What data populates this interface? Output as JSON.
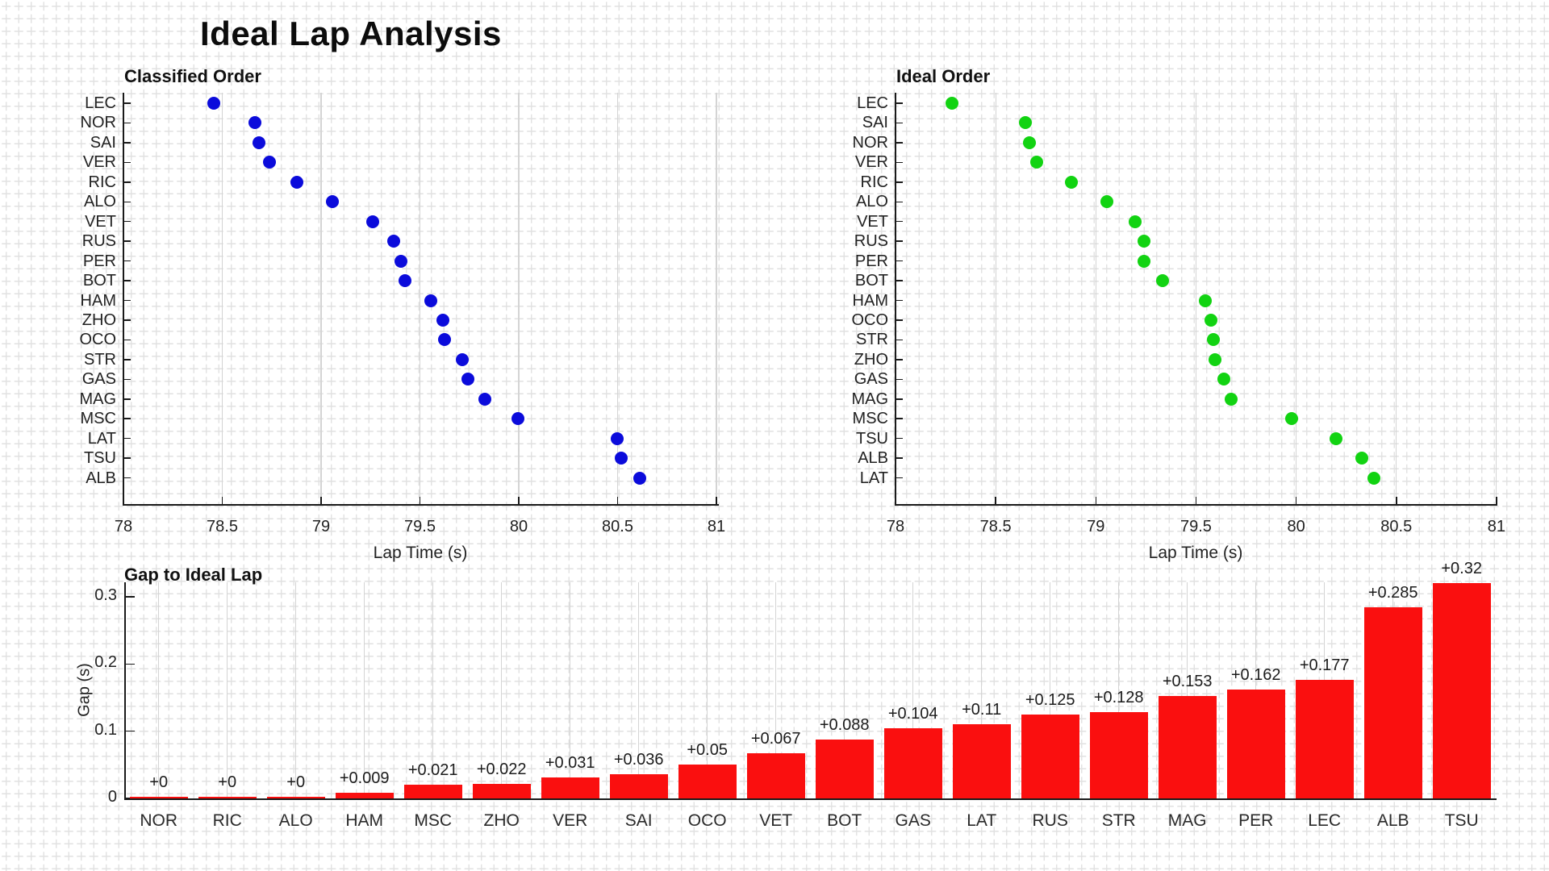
{
  "page": {
    "title": "Ideal Lap Analysis"
  },
  "colors": {
    "classified_marker": "#0b0bdb",
    "ideal_marker": "#12d312",
    "gap_bar": "#fa0f0f",
    "grid": "#d4d4d4",
    "spine": "#1a1a1a"
  },
  "chart_data": [
    {
      "type": "scatter",
      "title": "Classified Order",
      "xlabel": "Lap Time (s)",
      "xlim": [
        78,
        81
      ],
      "x_ticks": [
        "78",
        "78.5",
        "79",
        "79.5",
        "80",
        "80.5",
        "81"
      ],
      "grid": "vertical",
      "marker_color": "#0b0bdb",
      "categories": [
        "LEC",
        "NOR",
        "SAI",
        "VER",
        "RIC",
        "ALO",
        "VET",
        "RUS",
        "PER",
        "BOT",
        "HAM",
        "ZHO",
        "OCO",
        "STR",
        "GAS",
        "MAG",
        "MSC",
        "LAT",
        "TSU",
        "ALB"
      ],
      "values": [
        78.458,
        78.667,
        78.685,
        78.737,
        78.878,
        79.057,
        79.262,
        79.366,
        79.404,
        79.423,
        79.555,
        79.617,
        79.626,
        79.714,
        79.744,
        79.829,
        79.997,
        80.498,
        80.52,
        80.613
      ]
    },
    {
      "type": "scatter",
      "title": "Ideal Order",
      "xlabel": "Lap Time (s)",
      "xlim": [
        78,
        81
      ],
      "x_ticks": [
        "78",
        "78.5",
        "79",
        "79.5",
        "80",
        "80.5",
        "81"
      ],
      "grid": "vertical",
      "marker_color": "#12d312",
      "categories": [
        "LEC",
        "SAI",
        "NOR",
        "VER",
        "RIC",
        "ALO",
        "VET",
        "RUS",
        "PER",
        "BOT",
        "HAM",
        "OCO",
        "STR",
        "ZHO",
        "GAS",
        "MAG",
        "MSC",
        "TSU",
        "ALB",
        "LAT"
      ],
      "values": [
        78.281,
        78.649,
        78.667,
        78.706,
        78.878,
        79.057,
        79.195,
        79.241,
        79.242,
        79.335,
        79.546,
        79.576,
        79.586,
        79.595,
        79.64,
        79.676,
        79.976,
        80.2,
        80.328,
        80.388
      ]
    },
    {
      "type": "bar",
      "title": "Gap to Ideal Lap",
      "ylabel": "Gap (s)",
      "ylim": [
        0,
        0.32
      ],
      "y_ticks": [
        "0",
        "0.1",
        "0.2",
        "0.3"
      ],
      "grid": "vertical",
      "bar_color": "#fa0f0f",
      "categories": [
        "NOR",
        "RIC",
        "ALO",
        "HAM",
        "MSC",
        "ZHO",
        "VER",
        "SAI",
        "OCO",
        "VET",
        "BOT",
        "GAS",
        "LAT",
        "RUS",
        "STR",
        "MAG",
        "PER",
        "LEC",
        "ALB",
        "TSU"
      ],
      "values": [
        0,
        0,
        0,
        0.009,
        0.021,
        0.022,
        0.031,
        0.036,
        0.05,
        0.067,
        0.088,
        0.104,
        0.11,
        0.125,
        0.128,
        0.153,
        0.162,
        0.177,
        0.285,
        0.32
      ],
      "bar_labels": [
        "+0",
        "+0",
        "+0",
        "+0.009",
        "+0.021",
        "+0.022",
        "+0.031",
        "+0.036",
        "+0.05",
        "+0.067",
        "+0.088",
        "+0.104",
        "+0.11",
        "+0.125",
        "+0.128",
        "+0.153",
        "+0.162",
        "+0.177",
        "+0.285",
        "+0.32"
      ]
    }
  ]
}
